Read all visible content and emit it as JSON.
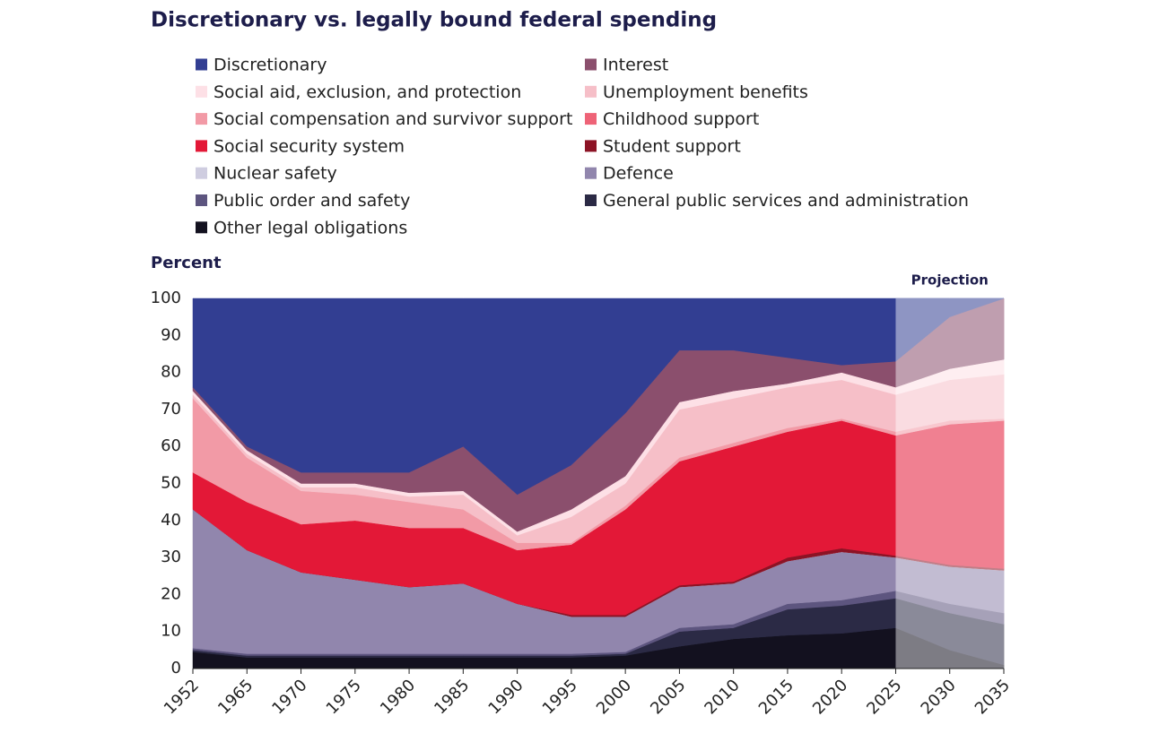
{
  "chart_data": {
    "type": "stacked-area",
    "title": "Discretionary vs. legally bound federal spending",
    "y_label": "Percent",
    "projection": {
      "label": "Projection",
      "from": "2025"
    },
    "categories": [
      "1952",
      "1965",
      "1970",
      "1975",
      "1980",
      "1985",
      "1990",
      "1995",
      "2000",
      "2005",
      "2010",
      "2015",
      "2020",
      "2025",
      "2030",
      "2035"
    ],
    "ylim": [
      0,
      100
    ],
    "yticks": [
      0,
      10,
      20,
      30,
      40,
      50,
      60,
      70,
      80,
      90,
      100
    ],
    "series": [
      {
        "name": "Discretionary",
        "color": "#323e92",
        "values": [
          24,
          40,
          47,
          47,
          47,
          40,
          53,
          45,
          31,
          14,
          14,
          16,
          18,
          17,
          5,
          0
        ]
      },
      {
        "name": "Interest",
        "color": "#8b4f6d",
        "values": [
          1,
          1,
          3,
          3,
          5.5,
          12,
          10,
          12,
          17,
          14,
          11,
          7,
          2,
          7,
          14,
          16.5
        ]
      },
      {
        "name": "Social aid, exclusion, and protection",
        "color": "#fde0e6",
        "values": [
          1,
          1,
          1,
          1,
          1,
          1,
          1,
          2,
          2,
          2,
          2,
          1,
          2,
          2,
          3,
          4
        ]
      },
      {
        "name": "Unemployment benefits",
        "color": "#f6bfc8",
        "values": [
          1,
          1,
          1,
          2,
          1.5,
          4,
          2,
          7,
          6,
          13,
          12,
          11,
          10.5,
          10,
          11,
          12
        ]
      },
      {
        "name": "Social compensation and survivor support",
        "color": "#f29aa6",
        "values": [
          20,
          12,
          9,
          7,
          7,
          5,
          2,
          0.5,
          1,
          1,
          1,
          1,
          0.5,
          1,
          1,
          0.5
        ]
      },
      {
        "name": "Childhood support",
        "color": "#ee6377",
        "values": [
          0,
          0,
          0,
          0,
          0,
          0,
          0,
          0,
          0,
          0,
          0,
          0,
          0,
          0,
          0,
          0
        ]
      },
      {
        "name": "Social security system",
        "color": "#e31837",
        "values": [
          10,
          13,
          13,
          16,
          16,
          15,
          14.5,
          19,
          28.5,
          33.5,
          36.5,
          34,
          34.5,
          32.5,
          38,
          40
        ]
      },
      {
        "name": "Student support",
        "color": "#8c1325",
        "values": [
          0,
          0,
          0,
          0,
          0,
          0,
          0,
          0.5,
          0.5,
          0.5,
          0.5,
          1,
          1,
          0.5,
          0.5,
          0.5
        ]
      },
      {
        "name": "Nuclear safety",
        "color": "#cfcde0",
        "values": [
          0,
          0,
          0,
          0,
          0,
          0,
          0,
          0,
          0,
          0,
          0,
          0,
          0,
          0,
          0,
          0
        ]
      },
      {
        "name": "Defence",
        "color": "#9186ad",
        "values": [
          37.5,
          28,
          22,
          20,
          18,
          19,
          13.5,
          10,
          9.5,
          11,
          11,
          11.5,
          13,
          9,
          10,
          11.5
        ]
      },
      {
        "name": "Public order and safety",
        "color": "#5d557f",
        "values": [
          0.5,
          0.5,
          0.5,
          0.5,
          0.5,
          0.5,
          0.5,
          0.5,
          0.5,
          1,
          1,
          1.5,
          1.5,
          2,
          2.5,
          3
        ]
      },
      {
        "name": "General public services and administration",
        "color": "#2b2a45",
        "values": [
          0.5,
          0.5,
          0.5,
          0.5,
          0.5,
          0.5,
          0.5,
          0.5,
          0.5,
          4,
          3,
          7,
          7.5,
          8,
          10,
          11
        ]
      },
      {
        "name": "Other legal obligations",
        "color": "#13111f",
        "values": [
          4.5,
          3,
          3,
          3,
          3,
          3,
          3,
          3,
          3.5,
          6,
          8,
          9,
          9.5,
          11,
          5,
          1
        ]
      }
    ]
  }
}
